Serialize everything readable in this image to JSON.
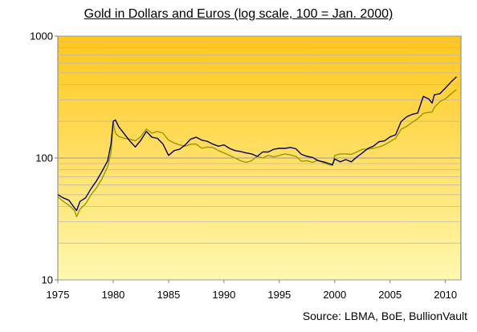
{
  "chart_data": {
    "type": "line",
    "title": "Gold in Dollars and Euros (log scale, 100 = Jan. 2000)",
    "source": "Source: LBMA, BoE, BullionVault",
    "xlabel": "",
    "ylabel": "",
    "xlim": [
      1975,
      2011.4
    ],
    "ylim": [
      10,
      1000
    ],
    "yscale": "log",
    "x_ticks": [
      "1975",
      "1980",
      "1985",
      "1990",
      "1995",
      "2000",
      "2005",
      "2010"
    ],
    "y_ticks": [
      "10",
      "100",
      "1000"
    ],
    "grid": true,
    "colors": {
      "dollars": "#000066",
      "euros": "#999900",
      "bg_top": "#FFC61A",
      "bg_bottom": "#FFF8B0",
      "grid": "#BFB9A8"
    },
    "series": [
      {
        "key": "dollars",
        "x": [
          1975.0,
          1975.5,
          1976.0,
          1976.5,
          1976.7,
          1977.0,
          1977.5,
          1978.0,
          1978.5,
          1979.0,
          1979.5,
          1979.8,
          1980.0,
          1980.2,
          1980.5,
          1981.0,
          1981.5,
          1982.0,
          1982.5,
          1983.0,
          1983.5,
          1984.0,
          1984.5,
          1985.0,
          1985.5,
          1986.0,
          1986.5,
          1987.0,
          1987.5,
          1988.0,
          1988.5,
          1989.0,
          1989.5,
          1990.0,
          1990.5,
          1991.0,
          1991.5,
          1992.0,
          1992.5,
          1993.0,
          1993.5,
          1994.0,
          1994.5,
          1995.0,
          1995.5,
          1996.0,
          1996.5,
          1997.0,
          1997.5,
          1998.0,
          1998.5,
          1999.0,
          1999.5,
          1999.8,
          2000.0,
          2000.5,
          2001.0,
          2001.5,
          2002.0,
          2002.5,
          2003.0,
          2003.5,
          2004.0,
          2004.5,
          2005.0,
          2005.5,
          2006.0,
          2006.5,
          2007.0,
          2007.5,
          2008.0,
          2008.5,
          2008.8,
          2009.0,
          2009.5,
          2010.0,
          2010.5,
          2011.0
        ],
        "y": [
          50,
          47,
          45,
          39,
          37,
          44,
          47,
          56,
          65,
          78,
          95,
          130,
          200,
          205,
          180,
          158,
          138,
          123,
          140,
          165,
          148,
          145,
          130,
          105,
          115,
          118,
          128,
          143,
          148,
          140,
          137,
          130,
          125,
          128,
          120,
          115,
          113,
          110,
          108,
          103,
          112,
          112,
          118,
          120,
          120,
          122,
          119,
          107,
          103,
          101,
          95,
          93,
          90,
          88,
          98,
          93,
          97,
          93,
          102,
          110,
          120,
          125,
          136,
          138,
          149,
          155,
          199,
          218,
          228,
          234,
          320,
          305,
          282,
          330,
          337,
          375,
          420,
          463
        ]
      },
      {
        "key": "euros",
        "x": [
          1975.0,
          1975.5,
          1976.0,
          1976.5,
          1976.7,
          1977.0,
          1977.5,
          1978.0,
          1978.5,
          1979.0,
          1979.5,
          1979.8,
          1980.0,
          1980.2,
          1980.5,
          1981.0,
          1981.5,
          1982.0,
          1982.5,
          1983.0,
          1983.5,
          1984.0,
          1984.5,
          1985.0,
          1985.5,
          1986.0,
          1986.5,
          1987.0,
          1987.5,
          1988.0,
          1988.5,
          1989.0,
          1989.5,
          1990.0,
          1990.5,
          1991.0,
          1991.5,
          1992.0,
          1992.5,
          1993.0,
          1993.5,
          1994.0,
          1994.5,
          1995.0,
          1995.5,
          1996.0,
          1996.5,
          1997.0,
          1997.5,
          1998.0,
          1998.5,
          1999.0,
          1999.5,
          1999.8,
          2000.0,
          2000.5,
          2001.0,
          2001.5,
          2002.0,
          2002.5,
          2003.0,
          2003.5,
          2004.0,
          2004.5,
          2005.0,
          2005.5,
          2006.0,
          2006.5,
          2007.0,
          2007.5,
          2008.0,
          2008.5,
          2008.8,
          2009.0,
          2009.5,
          2010.0,
          2010.5,
          2011.0
        ],
        "y": [
          48,
          44,
          41,
          37,
          33,
          38,
          42,
          50,
          57,
          68,
          85,
          110,
          195,
          160,
          150,
          145,
          143,
          138,
          150,
          173,
          160,
          165,
          160,
          140,
          133,
          128,
          125,
          130,
          130,
          120,
          123,
          122,
          115,
          110,
          105,
          100,
          95,
          92,
          95,
          103,
          100,
          105,
          102,
          105,
          108,
          106,
          103,
          94,
          95,
          92,
          96,
          91,
          88,
          87,
          105,
          108,
          108,
          107,
          112,
          118,
          118,
          120,
          123,
          128,
          136,
          145,
          172,
          182,
          196,
          210,
          232,
          237,
          238,
          260,
          290,
          306,
          335,
          365
        ]
      }
    ]
  }
}
